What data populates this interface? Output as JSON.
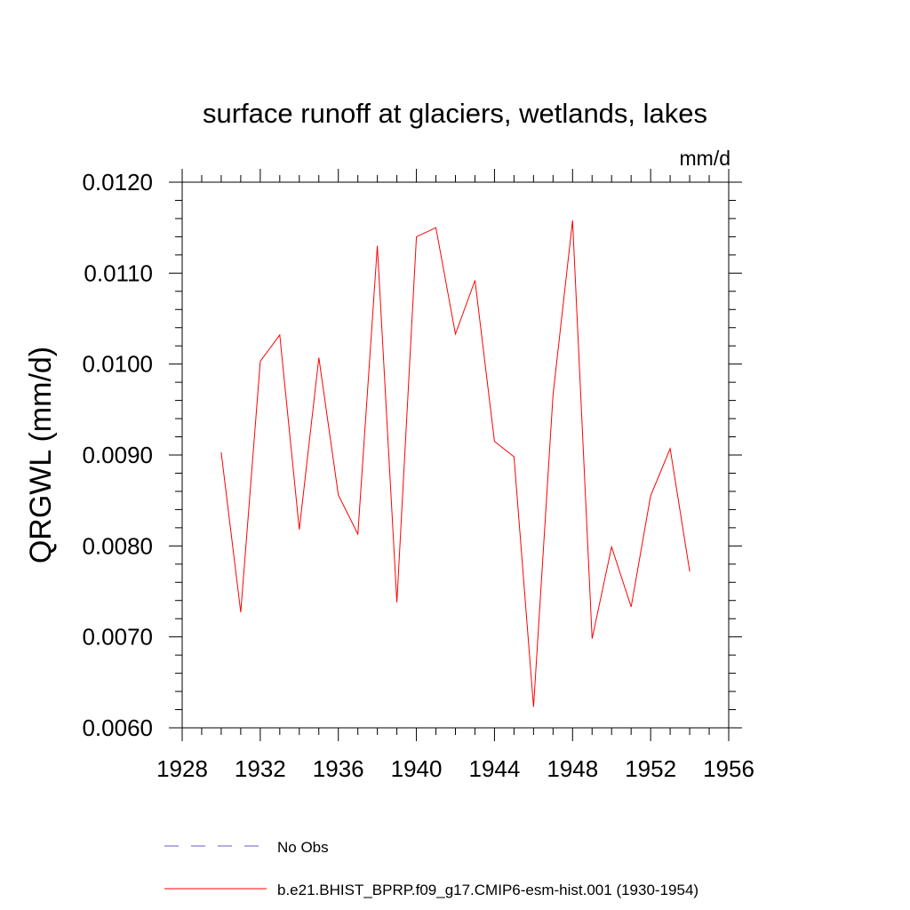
{
  "chart_data": {
    "type": "line",
    "title": "surface runoff at glaciers, wetlands, lakes",
    "units": "mm/d",
    "xlabel": "",
    "ylabel": "QRGWL  (mm/d)",
    "xlim": [
      1928,
      1956
    ],
    "ylim": [
      0.006,
      0.012
    ],
    "x_ticks": [
      "1928",
      "1932",
      "1936",
      "1940",
      "1944",
      "1948",
      "1952",
      "1956"
    ],
    "y_ticks": [
      "0.0060",
      "0.0070",
      "0.0080",
      "0.0090",
      "0.0100",
      "0.0110",
      "0.0120"
    ],
    "grid": false,
    "legend_position": "bottom",
    "legend": [
      {
        "label": "No Obs",
        "color": "#6a5acd",
        "dash": "dashed"
      },
      {
        "label": "b.e21.BHIST_BPRP.f09_g17.CMIP6-esm-hist.001 (1930-1954)",
        "color": "#ff0000",
        "dash": "solid"
      }
    ],
    "series": [
      {
        "name": "b.e21.BHIST_BPRP.f09_g17.CMIP6-esm-hist.001 (1930-1954)",
        "color": "#ff0000",
        "x": [
          1930,
          1931,
          1932,
          1933,
          1934,
          1935,
          1936,
          1937,
          1938,
          1939,
          1940,
          1941,
          1942,
          1943,
          1944,
          1945,
          1946,
          1947,
          1948,
          1949,
          1950,
          1951,
          1952,
          1953,
          1954
        ],
        "y": [
          0.00903,
          0.00727,
          0.01003,
          0.01032,
          0.00818,
          0.01007,
          0.00856,
          0.00813,
          0.0113,
          0.00738,
          0.0114,
          0.0115,
          0.01033,
          0.01092,
          0.00915,
          0.00898,
          0.00623,
          0.00966,
          0.01158,
          0.00698,
          0.00799,
          0.00733,
          0.00855,
          0.00907,
          0.00772
        ]
      }
    ]
  }
}
